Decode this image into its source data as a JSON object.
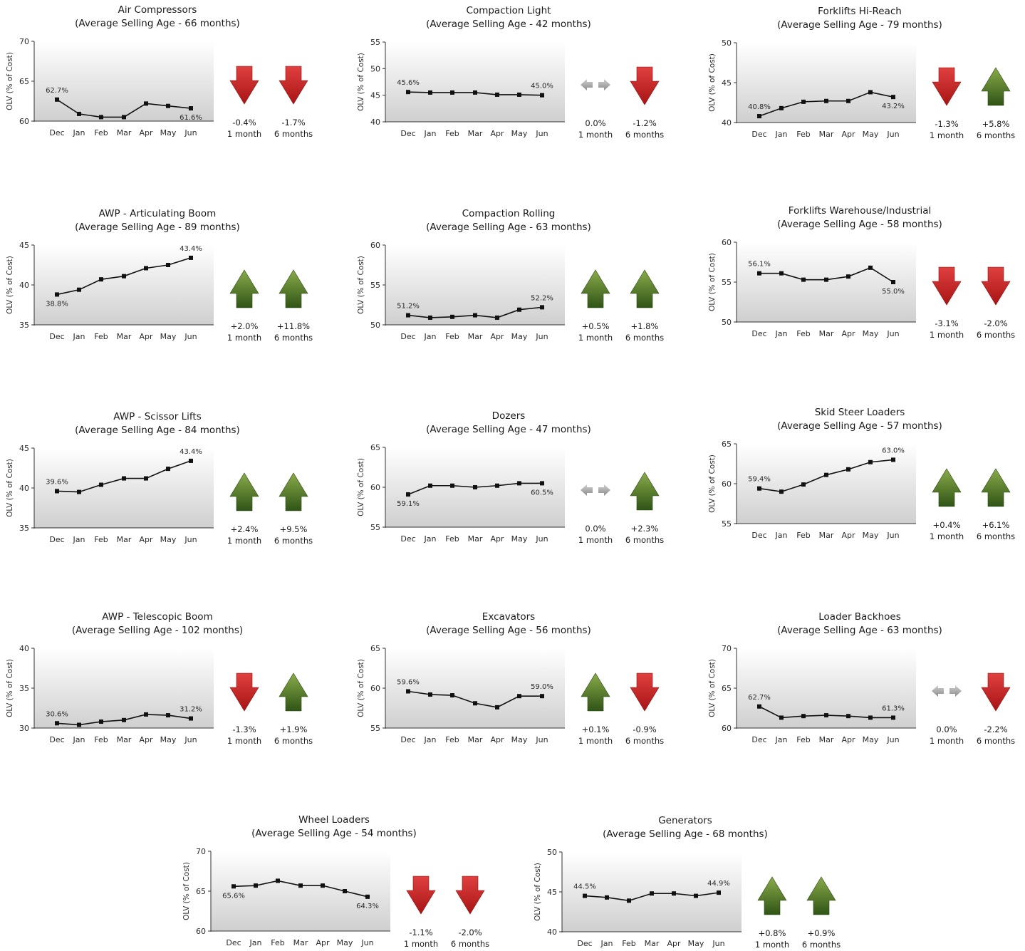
{
  "colors": {
    "down": "#d42828",
    "up": "#4f7a22",
    "flat": "#a8a8a8",
    "line": "#111111",
    "plot_top": "#ffffff",
    "plot_bottom": "#cfcfcf"
  },
  "common": {
    "ylabel": "OLV (% of Cost)",
    "months": [
      "Dec",
      "Jan",
      "Feb",
      "Mar",
      "Apr",
      "May",
      "Jun"
    ],
    "period_1": "1 month",
    "period_6": "6 months"
  },
  "chart_data": [
    {
      "type": "line",
      "title": "Air Compressors",
      "subtitle": "(Average Selling Age - 66 months)",
      "ylabel": "OLV (% of Cost)",
      "categories": [
        "Dec",
        "Jan",
        "Feb",
        "Mar",
        "Apr",
        "May",
        "Jun"
      ],
      "values": [
        62.7,
        60.9,
        60.5,
        60.5,
        62.2,
        61.9,
        61.6
      ],
      "ylim": [
        60,
        70
      ],
      "yticks": [
        60,
        65,
        70
      ],
      "labels": {
        "first": "62.7%",
        "last": "61.6%"
      },
      "label_pos": {
        "first": "above",
        "last": "below"
      },
      "change_1m": {
        "text": "-0.4%",
        "dir": "down"
      },
      "change_6m": {
        "text": "-1.7%",
        "dir": "down"
      }
    },
    {
      "type": "line",
      "title": "Compaction Light",
      "subtitle": "(Average Selling Age - 42 months)",
      "ylabel": "OLV (% of Cost)",
      "categories": [
        "Dec",
        "Jan",
        "Feb",
        "Mar",
        "Apr",
        "May",
        "Jun"
      ],
      "values": [
        45.6,
        45.5,
        45.5,
        45.5,
        45.1,
        45.1,
        45.0
      ],
      "ylim": [
        40,
        55
      ],
      "yticks": [
        40,
        45,
        50,
        55
      ],
      "labels": {
        "first": "45.6%",
        "last": "45.0%"
      },
      "label_pos": {
        "first": "above",
        "last": "above"
      },
      "change_1m": {
        "text": "0.0%",
        "dir": "flat"
      },
      "change_6m": {
        "text": "-1.2%",
        "dir": "down"
      }
    },
    {
      "type": "line",
      "title": "Forklifts Hi-Reach",
      "subtitle": "(Average Selling Age - 79 months)",
      "ylabel": "OLV (% of Cost)",
      "categories": [
        "Dec",
        "Jan",
        "Feb",
        "Mar",
        "Apr",
        "May",
        "Jun"
      ],
      "values": [
        40.8,
        41.8,
        42.6,
        42.7,
        42.7,
        43.8,
        43.2
      ],
      "ylim": [
        40,
        50
      ],
      "yticks": [
        40,
        45,
        50
      ],
      "labels": {
        "first": "40.8%",
        "last": "43.2%"
      },
      "label_pos": {
        "first": "above",
        "last": "below"
      },
      "change_1m": {
        "text": "-1.3%",
        "dir": "down"
      },
      "change_6m": {
        "text": "+5.8%",
        "dir": "up"
      }
    },
    {
      "type": "line",
      "title": "AWP - Articulating Boom",
      "subtitle": "(Average Selling Age - 89 months)",
      "ylabel": "OLV (% of Cost)",
      "categories": [
        "Dec",
        "Jan",
        "Feb",
        "Mar",
        "Apr",
        "May",
        "Jun"
      ],
      "values": [
        38.8,
        39.4,
        40.7,
        41.1,
        42.1,
        42.5,
        43.4
      ],
      "ylim": [
        35,
        45
      ],
      "yticks": [
        35,
        40,
        45
      ],
      "labels": {
        "first": "38.8%",
        "last": "43.4%"
      },
      "label_pos": {
        "first": "below",
        "last": "above"
      },
      "change_1m": {
        "text": "+2.0%",
        "dir": "up"
      },
      "change_6m": {
        "text": "+11.8%",
        "dir": "up"
      }
    },
    {
      "type": "line",
      "title": "Compaction Rolling",
      "subtitle": "(Average Selling Age - 63 months)",
      "ylabel": "OLV (% of Cost)",
      "categories": [
        "Dec",
        "Jan",
        "Feb",
        "Mar",
        "Apr",
        "May",
        "Jun"
      ],
      "values": [
        51.2,
        50.9,
        51.0,
        51.2,
        50.9,
        51.9,
        52.2
      ],
      "ylim": [
        50,
        60
      ],
      "yticks": [
        50,
        55,
        60
      ],
      "labels": {
        "first": "51.2%",
        "last": "52.2%"
      },
      "label_pos": {
        "first": "above",
        "last": "above"
      },
      "change_1m": {
        "text": "+0.5%",
        "dir": "up"
      },
      "change_6m": {
        "text": "+1.8%",
        "dir": "up"
      }
    },
    {
      "type": "line",
      "title": "Forklifts Warehouse/Industrial",
      "subtitle": "(Average Selling Age - 58 months)",
      "ylabel": "OLV (% of Cost)",
      "categories": [
        "Dec",
        "Jan",
        "Feb",
        "Mar",
        "Apr",
        "May",
        "Jun"
      ],
      "values": [
        56.1,
        56.1,
        55.3,
        55.3,
        55.7,
        56.8,
        55.0
      ],
      "ylim": [
        50,
        60
      ],
      "yticks": [
        50,
        55,
        60
      ],
      "labels": {
        "first": "56.1%",
        "last": "55.0%"
      },
      "label_pos": {
        "first": "above",
        "last": "below"
      },
      "change_1m": {
        "text": "-3.1%",
        "dir": "down"
      },
      "change_6m": {
        "text": "-2.0%",
        "dir": "down"
      }
    },
    {
      "type": "line",
      "title": "AWP - Scissor Lifts",
      "subtitle": "(Average Selling Age - 84 months)",
      "ylabel": "OLV (% of Cost)",
      "categories": [
        "Dec",
        "Jan",
        "Feb",
        "Mar",
        "Apr",
        "May",
        "Jun"
      ],
      "values": [
        39.6,
        39.5,
        40.4,
        41.2,
        41.2,
        42.4,
        43.4
      ],
      "ylim": [
        35,
        45
      ],
      "yticks": [
        35,
        40,
        45
      ],
      "labels": {
        "first": "39.6%",
        "last": "43.4%"
      },
      "label_pos": {
        "first": "above",
        "last": "above"
      },
      "change_1m": {
        "text": "+2.4%",
        "dir": "up"
      },
      "change_6m": {
        "text": "+9.5%",
        "dir": "up"
      }
    },
    {
      "type": "line",
      "title": "Dozers",
      "subtitle": "(Average Selling Age - 47 months)",
      "ylabel": "OLV (% of Cost)",
      "categories": [
        "Dec",
        "Jan",
        "Feb",
        "Mar",
        "Apr",
        "May",
        "Jun"
      ],
      "values": [
        59.1,
        60.2,
        60.2,
        60.0,
        60.2,
        60.5,
        60.5
      ],
      "ylim": [
        55,
        65
      ],
      "yticks": [
        55,
        60,
        65
      ],
      "labels": {
        "first": "59.1%",
        "last": "60.5%"
      },
      "label_pos": {
        "first": "below",
        "last": "below"
      },
      "change_1m": {
        "text": "0.0%",
        "dir": "flat"
      },
      "change_6m": {
        "text": "+2.3%",
        "dir": "up"
      }
    },
    {
      "type": "line",
      "title": "Skid Steer Loaders",
      "subtitle": "(Average Selling Age - 57 months)",
      "ylabel": "OLV (% of Cost)",
      "categories": [
        "Dec",
        "Jan",
        "Feb",
        "Mar",
        "Apr",
        "May",
        "Jun"
      ],
      "values": [
        59.4,
        59.0,
        59.9,
        61.1,
        61.8,
        62.7,
        63.0
      ],
      "ylim": [
        55,
        65
      ],
      "yticks": [
        55,
        60,
        65
      ],
      "labels": {
        "first": "59.4%",
        "last": "63.0%"
      },
      "label_pos": {
        "first": "above",
        "last": "above"
      },
      "change_1m": {
        "text": "+0.4%",
        "dir": "up"
      },
      "change_6m": {
        "text": "+6.1%",
        "dir": "up"
      }
    },
    {
      "type": "line",
      "title": "AWP - Telescopic Boom",
      "subtitle": "(Average Selling Age - 102 months)",
      "ylabel": "OLV (% of Cost)",
      "categories": [
        "Dec",
        "Jan",
        "Feb",
        "Mar",
        "Apr",
        "May",
        "Jun"
      ],
      "values": [
        30.6,
        30.4,
        30.8,
        31.0,
        31.7,
        31.6,
        31.2
      ],
      "ylim": [
        30,
        40
      ],
      "yticks": [
        30,
        35,
        40
      ],
      "labels": {
        "first": "30.6%",
        "last": "31.2%"
      },
      "label_pos": {
        "first": "above",
        "last": "above"
      },
      "change_1m": {
        "text": "-1.3%",
        "dir": "down"
      },
      "change_6m": {
        "text": "+1.9%",
        "dir": "up"
      }
    },
    {
      "type": "line",
      "title": "Excavators",
      "subtitle": "(Average Selling Age - 56 months)",
      "ylabel": "OLV (% of Cost)",
      "categories": [
        "Dec",
        "Jan",
        "Feb",
        "Mar",
        "Apr",
        "May",
        "Jun"
      ],
      "values": [
        59.6,
        59.2,
        59.1,
        58.1,
        57.6,
        59.0,
        59.0
      ],
      "ylim": [
        55,
        65
      ],
      "yticks": [
        55,
        60,
        65
      ],
      "labels": {
        "first": "59.6%",
        "last": "59.0%"
      },
      "label_pos": {
        "first": "above",
        "last": "above"
      },
      "change_1m": {
        "text": "+0.1%",
        "dir": "up"
      },
      "change_6m": {
        "text": "-0.9%",
        "dir": "down"
      }
    },
    {
      "type": "line",
      "title": "Loader Backhoes",
      "subtitle": "(Average Selling Age - 63 months)",
      "ylabel": "OLV (% of Cost)",
      "categories": [
        "Dec",
        "Jan",
        "Feb",
        "Mar",
        "Apr",
        "May",
        "Jun"
      ],
      "values": [
        62.7,
        61.3,
        61.5,
        61.6,
        61.5,
        61.3,
        61.3
      ],
      "ylim": [
        60,
        70
      ],
      "yticks": [
        60,
        65,
        70
      ],
      "labels": {
        "first": "62.7%",
        "last": "61.3%"
      },
      "label_pos": {
        "first": "above",
        "last": "above"
      },
      "change_1m": {
        "text": "0.0%",
        "dir": "flat"
      },
      "change_6m": {
        "text": "-2.2%",
        "dir": "down"
      }
    },
    {
      "type": "line",
      "title": "Wheel Loaders",
      "subtitle": "(Average Selling Age - 54 months)",
      "ylabel": "OLV (% of Cost)",
      "categories": [
        "Dec",
        "Jan",
        "Feb",
        "Mar",
        "Apr",
        "May",
        "Jun"
      ],
      "values": [
        65.6,
        65.7,
        66.3,
        65.7,
        65.7,
        65.0,
        64.3
      ],
      "ylim": [
        60,
        70
      ],
      "yticks": [
        60,
        65,
        70
      ],
      "labels": {
        "first": "65.6%",
        "last": "64.3%"
      },
      "label_pos": {
        "first": "below",
        "last": "below"
      },
      "change_1m": {
        "text": "-1.1%",
        "dir": "down"
      },
      "change_6m": {
        "text": "-2.0%",
        "dir": "down"
      }
    },
    {
      "type": "line",
      "title": "Generators",
      "subtitle": "(Average Selling Age - 68 months)",
      "ylabel": "OLV (% of Cost)",
      "categories": [
        "Dec",
        "Jan",
        "Feb",
        "Mar",
        "Apr",
        "May",
        "Jun"
      ],
      "values": [
        44.5,
        44.3,
        43.9,
        44.8,
        44.8,
        44.5,
        44.9
      ],
      "ylim": [
        40,
        50
      ],
      "yticks": [
        40,
        45,
        50
      ],
      "labels": {
        "first": "44.5%",
        "last": "44.9%"
      },
      "label_pos": {
        "first": "above",
        "last": "above"
      },
      "change_1m": {
        "text": "+0.8%",
        "dir": "up"
      },
      "change_6m": {
        "text": "+0.9%",
        "dir": "up"
      }
    }
  ]
}
